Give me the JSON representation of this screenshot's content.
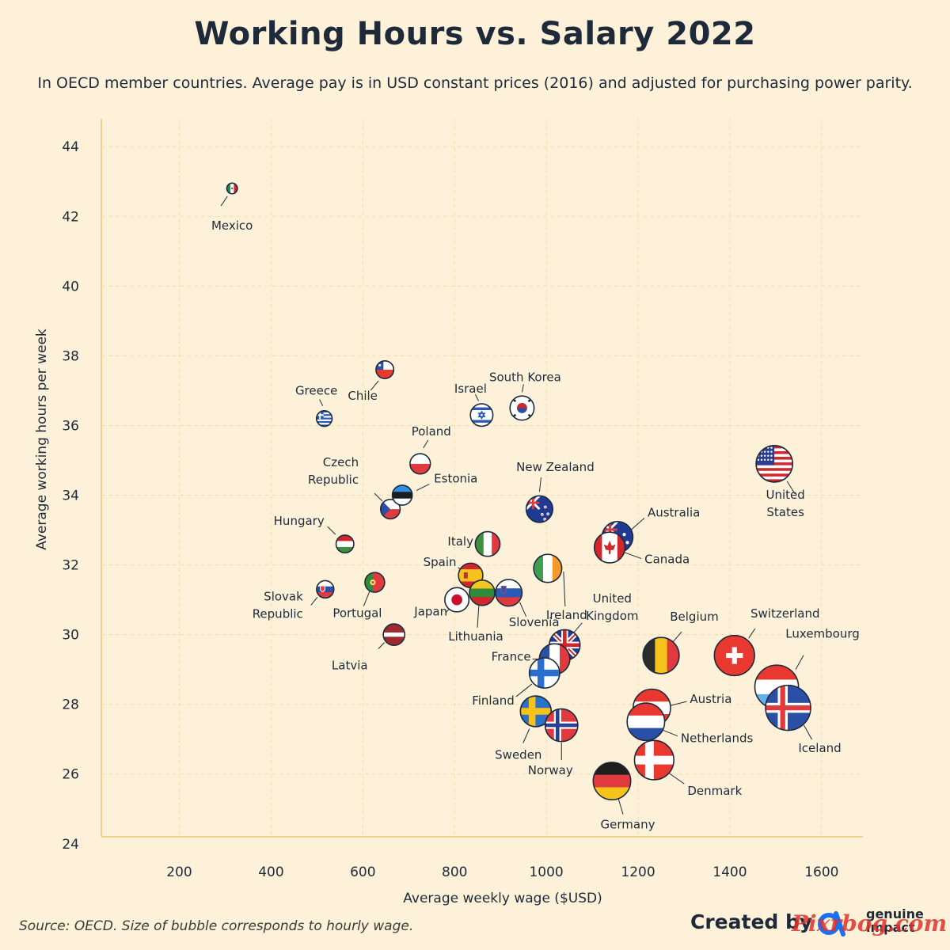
{
  "title": "Working Hours vs. Salary 2022",
  "subtitle": "In OECD member countries. Average pay is in USD constant prices (2016) and adjusted for purchasing power parity.",
  "source": "Source: OECD. Size of bubble corresponds to hourly wage.",
  "credit": {
    "created_by": "Created by",
    "brand_line1": "genuine",
    "brand_line2": "impact",
    "watermark": "Pixrbog.com"
  },
  "colors": {
    "background": "#fdf2d9",
    "grid": "#f3dcaa",
    "axis": "#f0d28e",
    "text": "#1e2a3a",
    "brand_blue": "#1b6ff0"
  },
  "chart_data": {
    "type": "scatter",
    "xlabel": "Average weekly wage ($USD)",
    "ylabel": "Average working hours per week",
    "xlim": [
      30,
      1690
    ],
    "ylim": [
      24.2,
      44.8
    ],
    "xticks": [
      200,
      400,
      600,
      800,
      1000,
      1200,
      1400,
      1600
    ],
    "yticks": [
      24,
      26,
      28,
      30,
      32,
      34,
      36,
      38,
      40,
      42,
      44
    ],
    "grid": true,
    "size_encoding": "hourly wage",
    "points": [
      {
        "label": "Mexico",
        "x": 315,
        "y": 42.8,
        "size": 7.4,
        "flag": "mexico"
      },
      {
        "label": "Chile",
        "x": 648,
        "y": 37.6,
        "size": 17.2,
        "flag": "chile"
      },
      {
        "label": "Greece",
        "x": 516,
        "y": 36.2,
        "size": 14.3,
        "flag": "greece"
      },
      {
        "label": "Israel",
        "x": 859,
        "y": 36.3,
        "size": 23.7,
        "flag": "israel"
      },
      {
        "label": "South Korea",
        "x": 947,
        "y": 36.5,
        "size": 25.9,
        "flag": "south-korea"
      },
      {
        "label": "Poland",
        "x": 725,
        "y": 34.9,
        "size": 20.8,
        "flag": "poland"
      },
      {
        "label": "Czech Republic",
        "x": 660,
        "y": 33.6,
        "size": 19.6,
        "flag": "czech-republic"
      },
      {
        "label": "Estonia",
        "x": 686,
        "y": 34.0,
        "size": 20.2,
        "flag": "estonia"
      },
      {
        "label": "New Zealand",
        "x": 985,
        "y": 33.6,
        "size": 29.3,
        "flag": "new-zealand"
      },
      {
        "label": "United States",
        "x": 1497,
        "y": 34.9,
        "size": 42.9,
        "flag": "united-states"
      },
      {
        "label": "Hungary",
        "x": 561,
        "y": 32.6,
        "size": 17.2,
        "flag": "hungary"
      },
      {
        "label": "Australia",
        "x": 1155,
        "y": 32.8,
        "size": 35.2,
        "flag": "australia"
      },
      {
        "label": "Canada",
        "x": 1138,
        "y": 32.5,
        "size": 35.0,
        "flag": "canada"
      },
      {
        "label": "Italy",
        "x": 872,
        "y": 32.6,
        "size": 26.7,
        "flag": "italy"
      },
      {
        "label": "Ireland",
        "x": 1003,
        "y": 31.9,
        "size": 31.4,
        "flag": "ireland"
      },
      {
        "label": "Spain",
        "x": 835,
        "y": 31.7,
        "size": 26.3,
        "flag": "spain"
      },
      {
        "label": "Slovak Republic",
        "x": 518,
        "y": 31.3,
        "size": 16.6,
        "flag": "slovak-republic"
      },
      {
        "label": "Portugal",
        "x": 626,
        "y": 31.5,
        "size": 19.9,
        "flag": "portugal"
      },
      {
        "label": "Slovenia",
        "x": 918,
        "y": 31.2,
        "size": 29.4,
        "flag": "slovenia"
      },
      {
        "label": "Japan",
        "x": 805,
        "y": 31.0,
        "size": 26.0,
        "flag": "japan"
      },
      {
        "label": "Lithuania",
        "x": 860,
        "y": 31.2,
        "size": 27.6,
        "flag": "lithuania"
      },
      {
        "label": "Latvia",
        "x": 668,
        "y": 30.0,
        "size": 22.3,
        "flag": "latvia"
      },
      {
        "label": "United Kingdom",
        "x": 1040,
        "y": 29.7,
        "size": 35.0,
        "flag": "united-kingdom"
      },
      {
        "label": "France",
        "x": 1018,
        "y": 29.3,
        "size": 34.7,
        "flag": "france"
      },
      {
        "label": "Finland",
        "x": 996,
        "y": 28.9,
        "size": 34.5,
        "flag": "finland"
      },
      {
        "label": "Belgium",
        "x": 1250,
        "y": 29.4,
        "size": 42.5,
        "flag": "belgium"
      },
      {
        "label": "Switzerland",
        "x": 1410,
        "y": 29.4,
        "size": 48.0,
        "flag": "switzerland"
      },
      {
        "label": "Luxembourg",
        "x": 1502,
        "y": 28.5,
        "size": 52.7,
        "flag": "luxembourg"
      },
      {
        "label": "Iceland",
        "x": 1527,
        "y": 27.9,
        "size": 54.7,
        "flag": "iceland"
      },
      {
        "label": "Sweden",
        "x": 977,
        "y": 27.8,
        "size": 35.1,
        "flag": "sweden"
      },
      {
        "label": "Norway",
        "x": 1033,
        "y": 27.4,
        "size": 37.7,
        "flag": "norway"
      },
      {
        "label": "Austria",
        "x": 1230,
        "y": 27.9,
        "size": 44.1,
        "flag": "austria"
      },
      {
        "label": "Netherlands",
        "x": 1217,
        "y": 27.5,
        "size": 44.3,
        "flag": "netherlands"
      },
      {
        "label": "Denmark",
        "x": 1235,
        "y": 26.4,
        "size": 46.8,
        "flag": "denmark"
      },
      {
        "label": "Germany",
        "x": 1143,
        "y": 25.8,
        "size": 44.3,
        "flag": "germany"
      }
    ]
  }
}
